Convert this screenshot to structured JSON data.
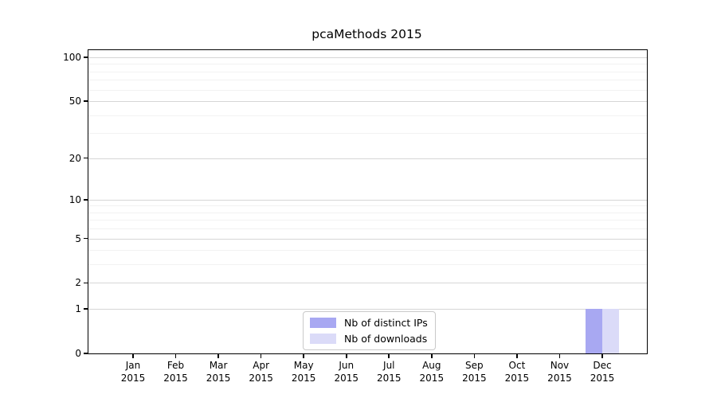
{
  "chart_data": {
    "type": "bar",
    "title": "pcaMethods 2015",
    "categories": [
      "Jan 2015",
      "Feb 2015",
      "Mar 2015",
      "Apr 2015",
      "May 2015",
      "Jun 2015",
      "Jul 2015",
      "Aug 2015",
      "Sep 2015",
      "Oct 2015",
      "Nov 2015",
      "Dec 2015"
    ],
    "x_axis": {
      "months": [
        "Jan",
        "Feb",
        "Mar",
        "Apr",
        "May",
        "Jun",
        "Jul",
        "Aug",
        "Sep",
        "Oct",
        "Nov",
        "Dec"
      ],
      "year": "2015"
    },
    "series": [
      {
        "name": "Nb of distinct IPs",
        "color": "#a8a8f2",
        "values": [
          0,
          0,
          0,
          0,
          0,
          0,
          0,
          0,
          0,
          0,
          0,
          1
        ]
      },
      {
        "name": "Nb of downloads",
        "color": "#dbdbf8",
        "values": [
          0,
          0,
          0,
          0,
          0,
          0,
          0,
          0,
          0,
          0,
          0,
          1
        ]
      }
    ],
    "yscale": "log1p",
    "ylim": [
      0,
      112
    ],
    "y_major_ticks": [
      0,
      1,
      2,
      5,
      10,
      20,
      50,
      100
    ],
    "y_minor_ticks": [
      3,
      4,
      6,
      7,
      8,
      9,
      30,
      40,
      60,
      70,
      80,
      90
    ],
    "grid": "horizontal",
    "legend_position": "lower center"
  },
  "colors": {
    "background": "#ffffff",
    "axis": "#000000",
    "grid_major": "#d6d6d6",
    "grid_minor": "#f2f2f2",
    "legend_border": "#c9c9c9"
  }
}
